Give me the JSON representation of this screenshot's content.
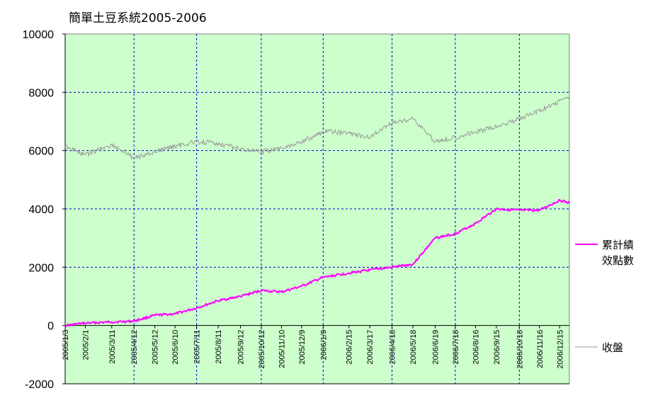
{
  "chart_data": {
    "type": "line",
    "title": "簡單土豆系統2005-2006",
    "xlabel": "",
    "ylabel": "",
    "ylim": [
      -2000,
      10000
    ],
    "yticks": [
      -2000,
      0,
      2000,
      4000,
      6000,
      8000,
      10000
    ],
    "y_grid": [
      2000,
      4000,
      6000,
      8000
    ],
    "x_categories": [
      "2005/1/3",
      "2005/2/1",
      "2005/3/11",
      "2005/4/12",
      "2005/5/12",
      "2005/6/10",
      "2005/7/11",
      "2005/8/11",
      "2005/9/12",
      "2005/10/12",
      "2005/11/10",
      "2005/12/9",
      "2006/1/9",
      "2006/2/15",
      "2006/3/17",
      "2006/4/18",
      "2006/5/18",
      "2006/6/19",
      "2006/7/18",
      "2006/8/16",
      "2006/9/15",
      "2006/10/18",
      "2006/11/16",
      "2006/12/15"
    ],
    "x_grid_labels": [
      "2005/4/12",
      "2005/7/11",
      "2005/10/12",
      "2006/1/9",
      "2006/4/18",
      "2006/7/18",
      "2006/10/18"
    ],
    "legend_position": "right",
    "plot_background": "#ccffcc",
    "series": [
      {
        "name": "累計績效點數",
        "color": "#ff00ff",
        "x": [
          "2005/1/3",
          "2005/2/1",
          "2005/3/11",
          "2005/4/12",
          "2005/5/12",
          "2005/6/10",
          "2005/7/11",
          "2005/8/11",
          "2005/9/12",
          "2005/10/12",
          "2005/11/10",
          "2005/12/9",
          "2006/1/9",
          "2006/2/15",
          "2006/3/17",
          "2006/4/18",
          "2006/5/18",
          "2006/6/19",
          "2006/7/18",
          "2006/8/16",
          "2006/9/15",
          "2006/10/18",
          "2006/11/16",
          "2006/12/15",
          "2006/12/29"
        ],
        "values": [
          0,
          80,
          120,
          150,
          350,
          400,
          600,
          850,
          1000,
          1200,
          1150,
          1350,
          1650,
          1800,
          1900,
          2000,
          2100,
          3000,
          3150,
          3500,
          4000,
          3950,
          3950,
          4300,
          4200
        ]
      },
      {
        "name": "收盤",
        "color": "#999999",
        "x": [
          "2005/1/3",
          "2005/2/1",
          "2005/3/11",
          "2005/4/12",
          "2005/5/12",
          "2005/6/10",
          "2005/7/11",
          "2005/8/11",
          "2005/9/12",
          "2005/10/12",
          "2005/11/10",
          "2005/12/9",
          "2006/1/9",
          "2006/2/15",
          "2006/3/17",
          "2006/4/18",
          "2006/5/18",
          "2006/6/19",
          "2006/7/18",
          "2006/8/16",
          "2006/9/15",
          "2006/10/18",
          "2006/11/16",
          "2006/12/15",
          "2006/12/29"
        ],
        "values": [
          6150,
          5850,
          6200,
          5750,
          5950,
          6150,
          6300,
          6250,
          6050,
          5950,
          6100,
          6300,
          6650,
          6600,
          6450,
          6950,
          7100,
          6300,
          6450,
          6650,
          6800,
          7100,
          7350,
          7700,
          7850
        ]
      }
    ]
  }
}
